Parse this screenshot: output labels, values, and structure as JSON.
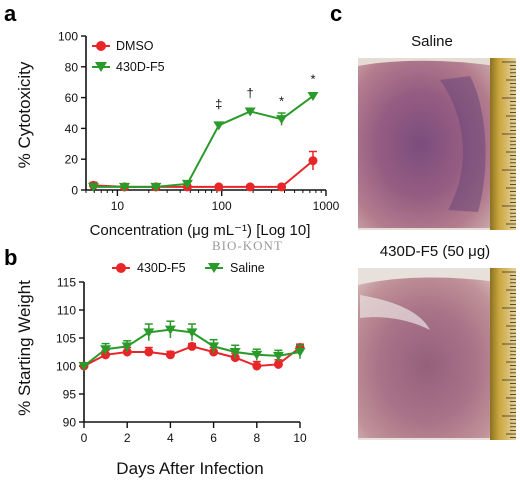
{
  "panels": {
    "a": "a",
    "b": "b",
    "c": "c"
  },
  "watermark": "BIO-KONT",
  "colors": {
    "dmso": "#e8262a",
    "f5": "#2a9a2a",
    "saline_b": "#2a9a2a",
    "f5_b": "#e8262a"
  },
  "chart_data": [
    {
      "type": "line",
      "panel": "a",
      "xlabel": "Concentration (μg mL⁻¹) [Log 10]",
      "ylabel": "% Cytotoxicity",
      "xscale": "log",
      "xlim": [
        5,
        1000
      ],
      "ylim": [
        0,
        100
      ],
      "xticks": [
        10,
        100,
        1000
      ],
      "xtick_labels": [
        "10",
        "100",
        "1000"
      ],
      "yticks": [
        0,
        20,
        40,
        60,
        80,
        100
      ],
      "ytick_labels": [
        "0",
        "20",
        "40",
        "60",
        "80",
        "100"
      ],
      "legend_position": "top-left",
      "series": [
        {
          "name": "DMSO",
          "marker": "circle",
          "x": [
            5.9,
            11.7,
            23.4,
            46.9,
            93.8,
            187.5,
            375,
            750
          ],
          "y": [
            3,
            2,
            2,
            2,
            2,
            2,
            2,
            19
          ],
          "err": [
            2,
            1,
            1,
            1,
            1,
            1,
            1,
            6
          ]
        },
        {
          "name": "430D-F5",
          "marker": "triangle-down",
          "x": [
            5.9,
            11.7,
            23.4,
            46.9,
            93.8,
            187.5,
            375,
            750
          ],
          "y": [
            2,
            2,
            2,
            4,
            42,
            51,
            46,
            61
          ],
          "err": [
            1,
            1,
            1,
            2,
            2,
            2,
            4,
            2
          ]
        }
      ],
      "annotations": [
        {
          "x": 93.8,
          "y": 53,
          "text": "‡"
        },
        {
          "x": 187.5,
          "y": 60,
          "text": "†"
        },
        {
          "x": 375,
          "y": 55,
          "text": "*"
        },
        {
          "x": 750,
          "y": 69,
          "text": "*"
        }
      ]
    },
    {
      "type": "line",
      "panel": "b",
      "xlabel": "Days After Infection",
      "ylabel": "% Starting Weight",
      "xlim": [
        0,
        10
      ],
      "ylim": [
        90,
        115
      ],
      "xticks": [
        0,
        2,
        4,
        6,
        8,
        10
      ],
      "xtick_labels": [
        "0",
        "2",
        "4",
        "6",
        "8",
        "10"
      ],
      "yticks": [
        90,
        95,
        100,
        105,
        110,
        115
      ],
      "ytick_labels": [
        "90",
        "95",
        "100",
        "105",
        "110",
        "115"
      ],
      "legend_position": "top",
      "series": [
        {
          "name": "430D-F5",
          "marker": "circle",
          "x": [
            0,
            1,
            2,
            3,
            4,
            5,
            6,
            7,
            8,
            9,
            10
          ],
          "y": [
            100,
            102,
            102.5,
            102.5,
            102,
            103.5,
            102.5,
            101.5,
            100,
            100.3,
            103.3
          ],
          "err": [
            0.5,
            0.8,
            0.8,
            0.8,
            0.6,
            0.5,
            0.8,
            0.8,
            0.8,
            0.8,
            0.6
          ]
        },
        {
          "name": "Saline",
          "marker": "triangle-down",
          "x": [
            0,
            1,
            2,
            3,
            4,
            5,
            6,
            7,
            8,
            9,
            10
          ],
          "y": [
            100,
            103,
            103.5,
            106,
            106.5,
            106,
            103.5,
            102.5,
            102,
            101.8,
            102.5
          ],
          "err": [
            0.5,
            1,
            1,
            1.5,
            1.5,
            1.5,
            1.2,
            1.2,
            1,
            1,
            1.2
          ]
        }
      ]
    }
  ],
  "photos": [
    {
      "label": "Saline"
    },
    {
      "label": "430D-F5 (50 μg)"
    }
  ]
}
